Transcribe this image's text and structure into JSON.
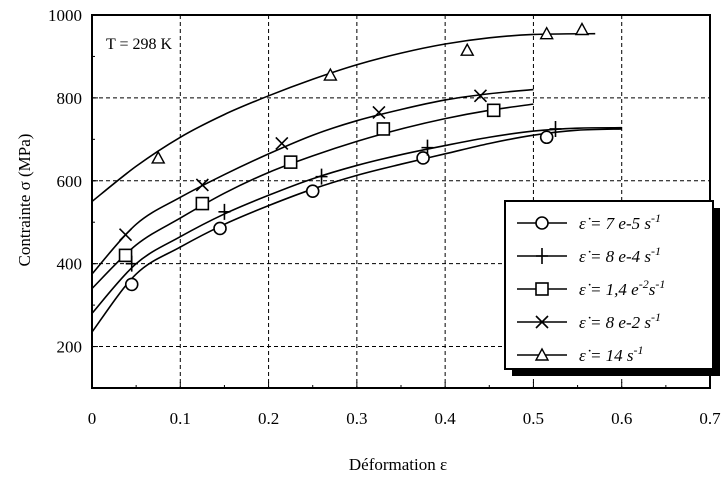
{
  "chart_data": {
    "type": "line",
    "annotation": "T = 298 K",
    "xlabel": "Déformation  ε",
    "ylabel": "Contrainte  σ  (MPa)",
    "xlim": [
      0,
      0.7
    ],
    "ylim": [
      100,
      1000
    ],
    "xticks": [
      "0",
      "0.1",
      "0.2",
      "0.3",
      "0.4",
      "0.5",
      "0.6",
      "0.7"
    ],
    "yticks": [
      "200",
      "400",
      "600",
      "800",
      "1000"
    ],
    "grid": true,
    "legend_position": "bottom-right",
    "series": [
      {
        "name": "ε̇ = 7 e-5 s⁻¹",
        "legend": {
          "prefix": "ε̇ = 7 e-5 s",
          "sup": "-1"
        },
        "marker": "circle",
        "curve": {
          "x": [
            0.0,
            0.05,
            0.1,
            0.15,
            0.2,
            0.25,
            0.3,
            0.35,
            0.4,
            0.45,
            0.5,
            0.55,
            0.6
          ],
          "y": [
            235,
            375,
            440,
            495,
            540,
            580,
            613,
            640,
            665,
            690,
            710,
            722,
            725
          ]
        },
        "points": {
          "x": [
            0.045,
            0.145,
            0.25,
            0.375,
            0.515
          ],
          "y": [
            350,
            485,
            575,
            655,
            705
          ]
        }
      },
      {
        "name": "ε̇ = 8 e-4 s⁻¹",
        "legend": {
          "prefix": "ε̇ = 8 e-4 s",
          "sup": "-1"
        },
        "marker": "plus",
        "curve": {
          "x": [
            0.0,
            0.05,
            0.1,
            0.15,
            0.2,
            0.25,
            0.3,
            0.35,
            0.4,
            0.45,
            0.5,
            0.55,
            0.6
          ],
          "y": [
            280,
            400,
            465,
            520,
            565,
            605,
            637,
            663,
            685,
            705,
            720,
            727,
            728
          ]
        },
        "points": {
          "x": [
            0.045,
            0.15,
            0.26,
            0.38,
            0.525
          ],
          "y": [
            400,
            525,
            610,
            680,
            725
          ]
        }
      },
      {
        "name": "ε̇ = 1,4 e⁻² s⁻¹",
        "legend": {
          "prefix": "ε̇ = 1,4 e",
          "sup": "-2",
          "mid": "s",
          "sup2": "-1"
        },
        "marker": "square",
        "curve": {
          "x": [
            0.0,
            0.05,
            0.1,
            0.15,
            0.2,
            0.25,
            0.3,
            0.35,
            0.4,
            0.45,
            0.5
          ],
          "y": [
            340,
            445,
            510,
            570,
            620,
            660,
            695,
            725,
            750,
            770,
            785
          ]
        },
        "points": {
          "x": [
            0.038,
            0.125,
            0.225,
            0.33,
            0.455
          ],
          "y": [
            420,
            545,
            645,
            725,
            770
          ]
        }
      },
      {
        "name": "ε̇ = 8 e-2 s⁻¹",
        "legend": {
          "prefix": "ε̇ = 8 e-2 s",
          "sup": "-1"
        },
        "marker": "cross",
        "curve": {
          "x": [
            0.0,
            0.05,
            0.1,
            0.15,
            0.2,
            0.25,
            0.3,
            0.35,
            0.4,
            0.45,
            0.5
          ],
          "y": [
            375,
            495,
            560,
            615,
            665,
            710,
            745,
            772,
            795,
            810,
            820
          ]
        },
        "points": {
          "x": [
            0.038,
            0.125,
            0.215,
            0.325,
            0.44
          ],
          "y": [
            470,
            590,
            690,
            765,
            805
          ]
        }
      },
      {
        "name": "ε̇ = 14 s⁻¹",
        "legend": {
          "prefix": "ε̇ = 14 s",
          "sup": "-1"
        },
        "marker": "triangle",
        "curve": {
          "x": [
            0.0,
            0.05,
            0.1,
            0.15,
            0.2,
            0.25,
            0.3,
            0.35,
            0.4,
            0.45,
            0.5,
            0.57
          ],
          "y": [
            550,
            635,
            705,
            760,
            805,
            845,
            880,
            908,
            930,
            945,
            953,
            955
          ]
        },
        "points": {
          "x": [
            0.075,
            0.27,
            0.425,
            0.515,
            0.555
          ],
          "y": [
            655,
            855,
            915,
            955,
            965
          ]
        }
      }
    ]
  }
}
